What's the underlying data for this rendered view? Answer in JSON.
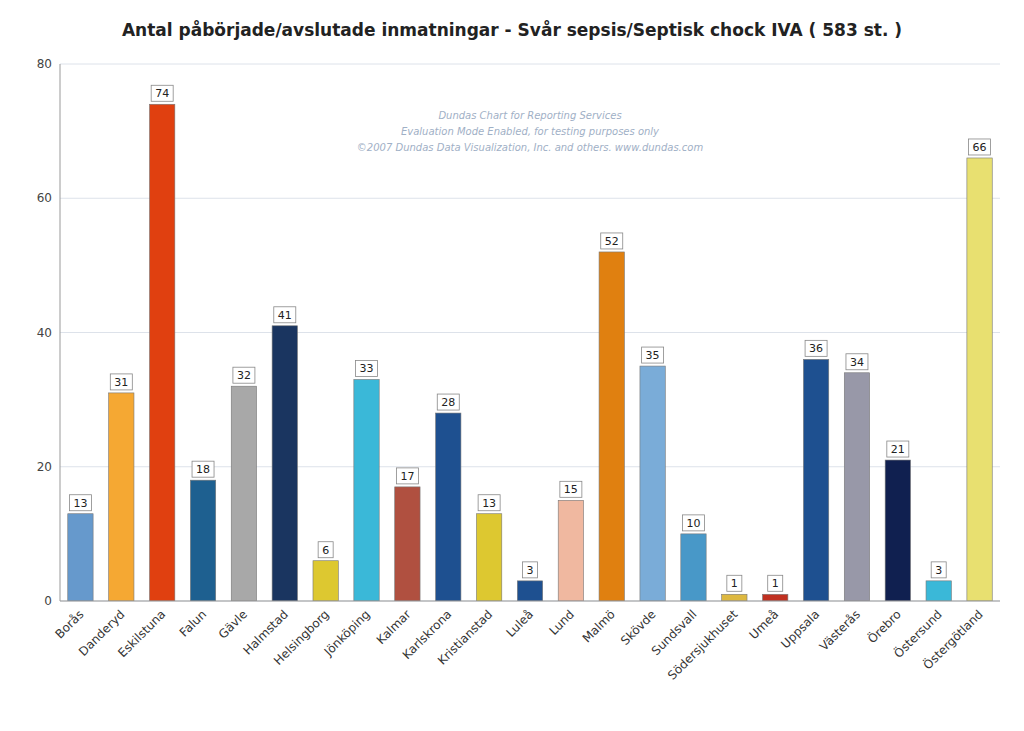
{
  "chart_data": {
    "type": "bar",
    "title": "Antal påbörjade/avslutade inmatningar - Svår sepsis/Septisk chock IVA ( 583 st. )",
    "categories": [
      "Borås",
      "Danderyd",
      "Eskilstuna",
      "Falun",
      "Gävle",
      "Halmstad",
      "Helsingborg",
      "Jönköping",
      "Kalmar",
      "Karlskrona",
      "Kristianstad",
      "Luleå",
      "Lund",
      "Malmö",
      "Skövde",
      "Sundsvall",
      "Södersjukhuset",
      "Umeå",
      "Uppsala",
      "Västerås",
      "Örebro",
      "Östersund",
      "Östergötland"
    ],
    "values": [
      13,
      31,
      74,
      18,
      32,
      41,
      6,
      33,
      17,
      28,
      13,
      3,
      15,
      52,
      35,
      10,
      1,
      1,
      36,
      34,
      21,
      3,
      66
    ],
    "colors": [
      "#6699cc",
      "#f5a833",
      "#e04010",
      "#1e6090",
      "#a8a8a8",
      "#1a3560",
      "#ddc830",
      "#3ab8d8",
      "#b05040",
      "#1e5090",
      "#ddc830",
      "#1e5090",
      "#f0b8a0",
      "#e08010",
      "#7aacd8",
      "#4898c8",
      "#ddb840",
      "#c03020",
      "#1e5090",
      "#9898a8",
      "#102050",
      "#3ab8d8",
      "#e8e070"
    ],
    "ylim": [
      0,
      80
    ],
    "yticks": [
      0,
      20,
      40,
      60,
      80
    ],
    "grid": true,
    "data_labels": true,
    "annotations": [
      "Dundas Chart for Reporting Services",
      "Evaluation Mode Enabled, for testing purposes only",
      "©2007 Dundas Data Visualization, Inc. and others. www.dundas.com"
    ]
  }
}
